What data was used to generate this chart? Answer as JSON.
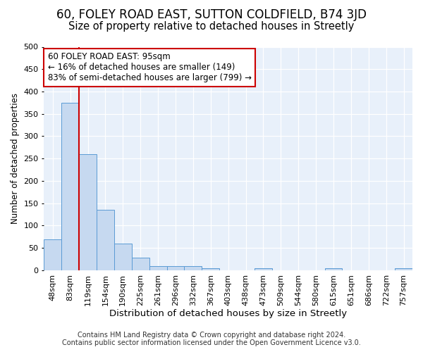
{
  "title_line1": "60, FOLEY ROAD EAST, SUTTON COLDFIELD, B74 3JD",
  "title_line2": "Size of property relative to detached houses in Streetly",
  "xlabel": "Distribution of detached houses by size in Streetly",
  "ylabel": "Number of detached properties",
  "bar_labels": [
    "48sqm",
    "83sqm",
    "119sqm",
    "154sqm",
    "190sqm",
    "225sqm",
    "261sqm",
    "296sqm",
    "332sqm",
    "367sqm",
    "403sqm",
    "438sqm",
    "473sqm",
    "509sqm",
    "544sqm",
    "580sqm",
    "615sqm",
    "651sqm",
    "686sqm",
    "722sqm",
    "757sqm"
  ],
  "bar_values": [
    70,
    375,
    260,
    135,
    60,
    28,
    10,
    10,
    10,
    5,
    0,
    0,
    5,
    0,
    0,
    0,
    4,
    0,
    0,
    0,
    4
  ],
  "bar_color": "#c6d9f0",
  "bar_edge_color": "#5b9bd5",
  "vline_color": "#cc0000",
  "vline_x_index": 1,
  "ylim": [
    0,
    500
  ],
  "yticks": [
    0,
    50,
    100,
    150,
    200,
    250,
    300,
    350,
    400,
    450,
    500
  ],
  "annotation_text_line1": "60 FOLEY ROAD EAST: 95sqm",
  "annotation_text_line2": "← 16% of detached houses are smaller (149)",
  "annotation_text_line3": "83% of semi-detached houses are larger (799) →",
  "annotation_box_color": "#ffffff",
  "annotation_box_edge_color": "#cc0000",
  "footer_line1": "Contains HM Land Registry data © Crown copyright and database right 2024.",
  "footer_line2": "Contains public sector information licensed under the Open Government Licence v3.0.",
  "bg_color": "#e8f0fa",
  "fig_bg_color": "#ffffff",
  "grid_color": "#ffffff",
  "title1_fontsize": 12,
  "title2_fontsize": 10.5,
  "xlabel_fontsize": 9.5,
  "ylabel_fontsize": 8.5,
  "tick_fontsize": 8,
  "annotation_fontsize": 8.5,
  "footer_fontsize": 7
}
